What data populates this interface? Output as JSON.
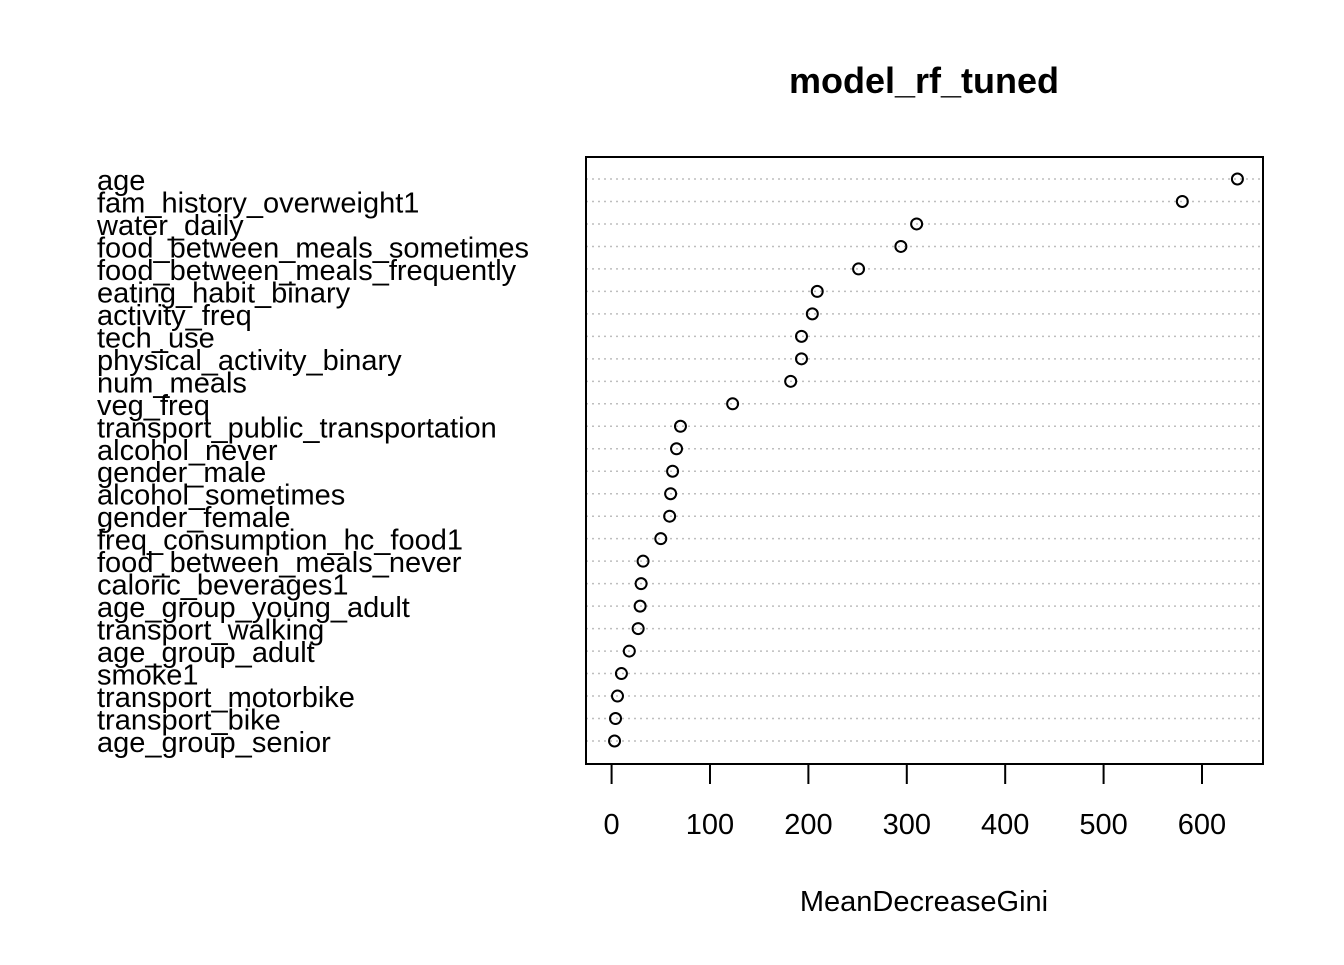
{
  "chart_data": {
    "type": "scatter",
    "subtype": "dotchart",
    "title": "model_rf_tuned",
    "xlabel": "MeanDecreaseGini",
    "ylabel": "",
    "xlim": [
      -26,
      662
    ],
    "xticks": [
      0,
      100,
      200,
      300,
      400,
      500,
      600
    ],
    "grid": "dotted horizontal guides",
    "categories": [
      "age",
      "fam_history_overweight1",
      "water_daily",
      "food_between_meals_sometimes",
      "food_between_meals_frequently",
      "eating_habit_binary",
      "activity_freq",
      "tech_use",
      "physical_activity_binary",
      "num_meals",
      "veg_freq",
      "transport_public_transportation",
      "alcohol_never",
      "gender_male",
      "alcohol_sometimes",
      "gender_female",
      "freq_consumption_hc_food1",
      "food_between_meals_never",
      "caloric_beverages1",
      "age_group_young_adult",
      "transport_walking",
      "age_group_adult",
      "smoke1",
      "transport_motorbike",
      "transport_bike",
      "age_group_senior"
    ],
    "values": [
      636,
      580,
      310,
      294,
      251,
      209,
      204,
      193,
      193,
      182,
      123,
      70,
      66,
      62,
      60,
      59,
      50,
      32,
      30,
      29,
      27,
      18,
      10,
      6,
      4,
      3
    ]
  }
}
